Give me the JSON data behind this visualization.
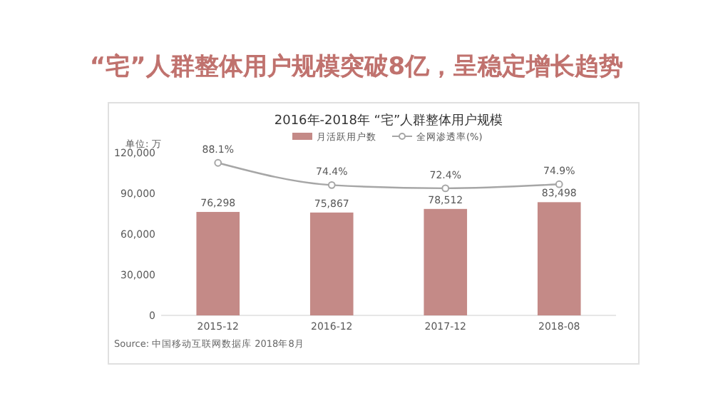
{
  "chart_data": {
    "type": "bar",
    "title": "“宅”人群整体用户规模突破8亿，呈稳定增长趋势",
    "subtitle": "2016年-2018年 “宅”人群整体用户规模",
    "ylabel": "单位: 万",
    "categories": [
      "2015-12",
      "2016-12",
      "2017-12",
      "2018-08"
    ],
    "series": [
      {
        "name": "月活跃用户数",
        "color": "#c48a87",
        "values": [
          76298,
          75867,
          78512,
          83498
        ],
        "value_labels": [
          "76,298",
          "75,867",
          "78,512",
          "83,498"
        ]
      },
      {
        "name": "全网渗透率(%)",
        "type": "line",
        "axis": "y2",
        "color": "#a6a6a6",
        "marker": "circle",
        "values": [
          88.1,
          74.4,
          72.4,
          74.9
        ],
        "value_labels": [
          "88.1%",
          "74.4%",
          "72.4%",
          "74.9%"
        ]
      }
    ],
    "ylim": [
      0,
      120000
    ],
    "yticks": [
      {
        "value": 0,
        "label": "0"
      },
      {
        "value": 30000,
        "label": "30,000"
      },
      {
        "value": 60000,
        "label": "60,000"
      },
      {
        "value": 90000,
        "label": "90,000"
      },
      {
        "value": 120000,
        "label": "120,000"
      }
    ],
    "legend": "top",
    "grid": false,
    "annotations": [
      "Source: 中国移动互联网数据库 2018年8月"
    ]
  }
}
